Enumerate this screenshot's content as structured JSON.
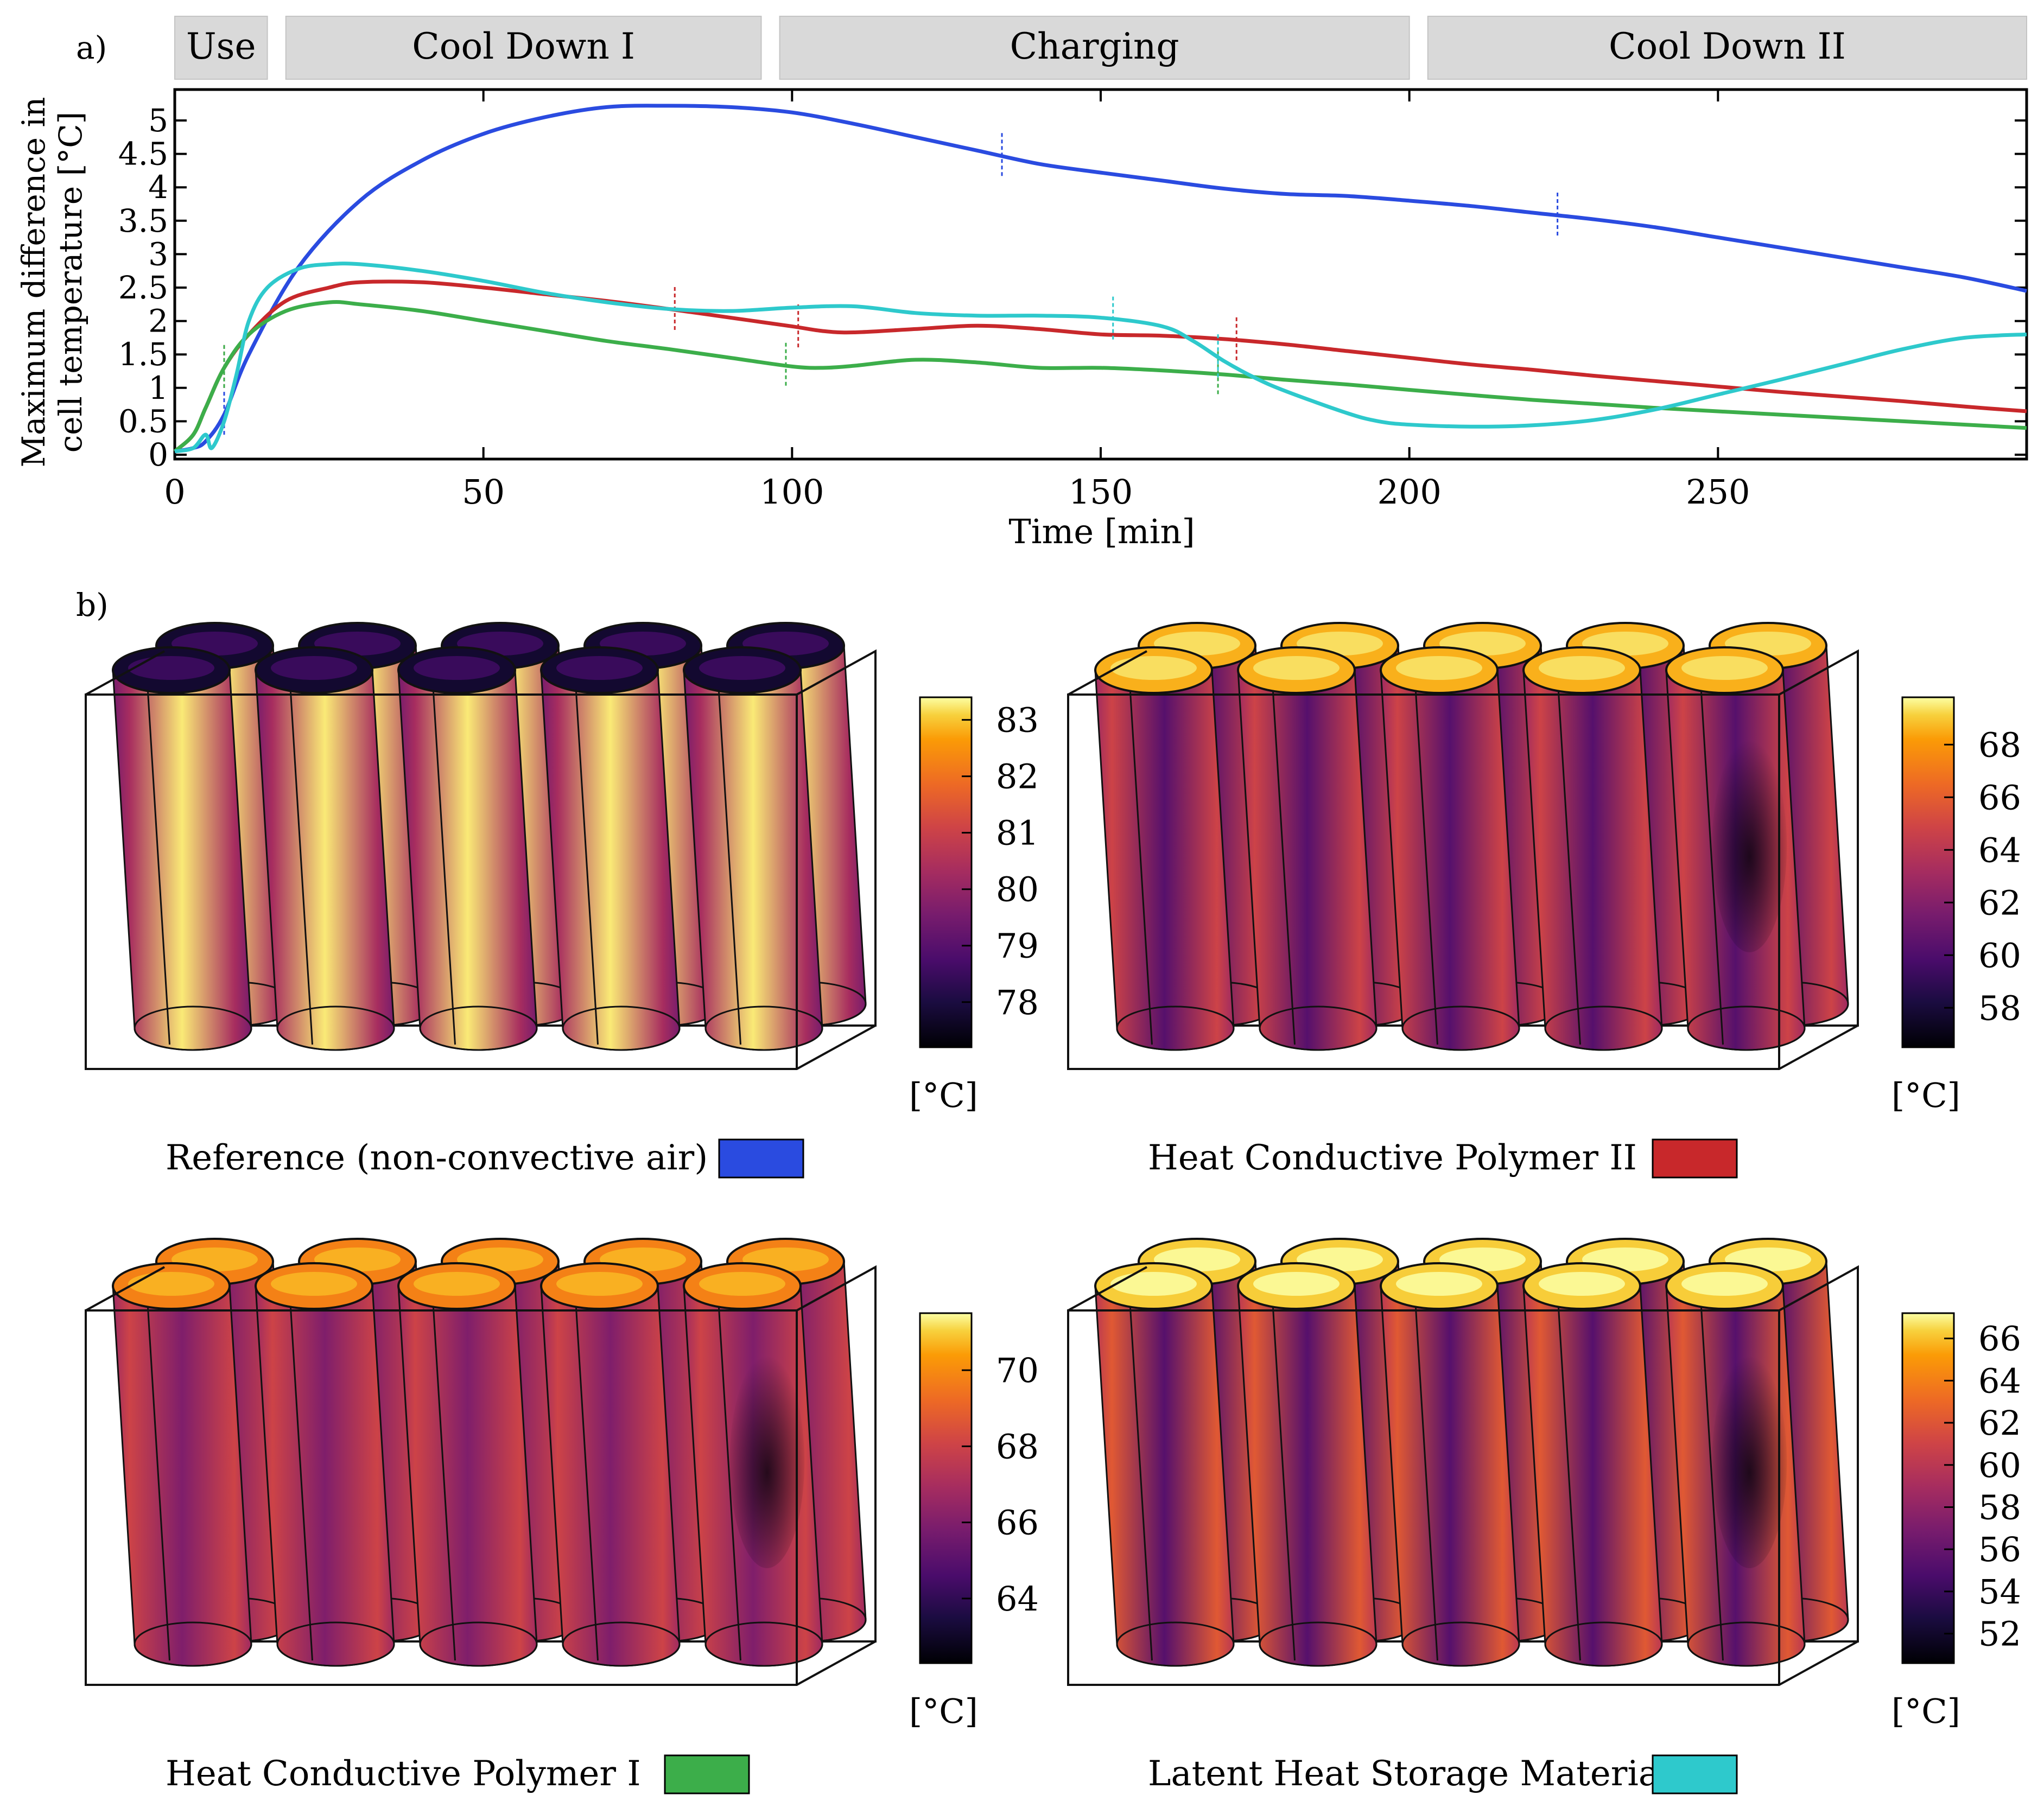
{
  "panel_labels": {
    "a": "a)",
    "b": "b)"
  },
  "chart_data": {
    "type": "line",
    "xlabel": "Time [min]",
    "ylabel_line1": "Maximum difference in",
    "ylabel_line2": "cell temperature [°C]",
    "xlim": [
      0,
      300
    ],
    "ylim": [
      0,
      5.5
    ],
    "xticks": [
      0,
      50,
      100,
      150,
      200,
      250
    ],
    "yticks": [
      0,
      0.5,
      1,
      1.5,
      2,
      2.5,
      3,
      3.5,
      4,
      4.5,
      5
    ],
    "xtick_labels": [
      "0",
      "50",
      "100",
      "150",
      "200",
      "250"
    ],
    "ytick_labels": [
      "0",
      "0.5",
      "1",
      "1.5",
      "2",
      "2.5",
      "3",
      "3.5",
      "4",
      "4.5",
      "5"
    ],
    "phases": [
      {
        "label": "Use",
        "start": 0,
        "end": 15
      },
      {
        "label": "Cool Down I",
        "start": 18,
        "end": 95
      },
      {
        "label": "Charging",
        "start": 98,
        "end": 200
      },
      {
        "label": "Cool Down II",
        "start": 203,
        "end": 300
      }
    ],
    "series": [
      {
        "name": "Reference (non-convective air)",
        "color": "#2a4be0",
        "x": [
          0,
          3,
          5,
          8,
          12,
          20,
          30,
          40,
          50,
          60,
          70,
          80,
          90,
          100,
          110,
          120,
          130,
          140,
          150,
          160,
          170,
          180,
          190,
          200,
          210,
          220,
          230,
          240,
          250,
          260,
          270,
          280,
          290,
          300
        ],
        "y": [
          0.05,
          0.1,
          0.2,
          0.6,
          1.5,
          2.8,
          3.8,
          4.4,
          4.8,
          5.05,
          5.2,
          5.22,
          5.2,
          5.12,
          4.95,
          4.75,
          4.55,
          4.35,
          4.22,
          4.1,
          3.98,
          3.9,
          3.87,
          3.8,
          3.72,
          3.62,
          3.52,
          3.4,
          3.25,
          3.1,
          2.95,
          2.8,
          2.65,
          2.45
        ],
        "markers": [
          8,
          134,
          224
        ]
      },
      {
        "name": "Heat Conductive Polymer II",
        "color": "#c8282b",
        "x": [
          0,
          3,
          5,
          8,
          12,
          18,
          25,
          30,
          40,
          50,
          60,
          70,
          80,
          90,
          100,
          105,
          110,
          120,
          130,
          140,
          150,
          160,
          170,
          180,
          190,
          200,
          210,
          220,
          230,
          240,
          250,
          260,
          270,
          280,
          290,
          300
        ],
        "y": [
          0.05,
          0.3,
          0.7,
          1.3,
          1.8,
          2.3,
          2.5,
          2.58,
          2.58,
          2.5,
          2.4,
          2.3,
          2.18,
          2.05,
          1.92,
          1.85,
          1.83,
          1.88,
          1.93,
          1.88,
          1.8,
          1.78,
          1.73,
          1.65,
          1.55,
          1.45,
          1.35,
          1.27,
          1.18,
          1.1,
          1.02,
          0.94,
          0.87,
          0.8,
          0.72,
          0.65
        ],
        "markers": [
          8,
          81,
          101,
          172
        ]
      },
      {
        "name": "Heat Conductive Polymer I",
        "color": "#3cae4a",
        "x": [
          0,
          3,
          5,
          8,
          12,
          18,
          25,
          30,
          40,
          50,
          60,
          70,
          80,
          90,
          100,
          105,
          110,
          120,
          130,
          140,
          150,
          160,
          170,
          180,
          190,
          200,
          220,
          240,
          260,
          280,
          300
        ],
        "y": [
          0.05,
          0.3,
          0.7,
          1.3,
          1.8,
          2.15,
          2.28,
          2.25,
          2.15,
          2.0,
          1.85,
          1.7,
          1.58,
          1.45,
          1.32,
          1.3,
          1.33,
          1.42,
          1.38,
          1.3,
          1.3,
          1.26,
          1.2,
          1.12,
          1.05,
          0.97,
          0.82,
          0.7,
          0.6,
          0.5,
          0.4
        ],
        "markers": [
          8,
          99,
          169
        ]
      },
      {
        "name": "Latent Heat Storage Material",
        "color": "#2ec9cc",
        "x": [
          0,
          3,
          5,
          6,
          8,
          10,
          12,
          15,
          20,
          25,
          30,
          40,
          50,
          60,
          70,
          80,
          90,
          100,
          110,
          120,
          130,
          140,
          150,
          160,
          165,
          170,
          175,
          180,
          190,
          195,
          200,
          210,
          220,
          230,
          240,
          250,
          260,
          270,
          280,
          290,
          300
        ],
        "y": [
          0.05,
          0.1,
          0.3,
          0.1,
          0.5,
          1.2,
          2.0,
          2.5,
          2.78,
          2.85,
          2.85,
          2.75,
          2.6,
          2.42,
          2.28,
          2.18,
          2.15,
          2.2,
          2.22,
          2.12,
          2.08,
          2.08,
          2.05,
          1.92,
          1.7,
          1.4,
          1.15,
          0.95,
          0.62,
          0.5,
          0.45,
          0.42,
          0.44,
          0.52,
          0.68,
          0.9,
          1.12,
          1.35,
          1.58,
          1.75,
          1.8
        ],
        "markers": [
          152,
          169
        ]
      }
    ]
  },
  "heatmaps": [
    {
      "caption": "Reference (non-convective air)",
      "legend_color": "#2a4be0",
      "unit": "[°C]",
      "ticks": [
        "83",
        "82",
        "81",
        "80",
        "79",
        "78"
      ],
      "tick_values": [
        83,
        82,
        81,
        80,
        79,
        78
      ],
      "cmin": 77.2,
      "cmax": 83.4,
      "cap_shade": 0.08,
      "body_center": 0.95,
      "body_edge": 0.45,
      "shadow_pos": -1
    },
    {
      "caption": "Heat Conductive Polymer II",
      "legend_color": "#c8282b",
      "unit": "[°C]",
      "ticks": [
        "68",
        "66",
        "64",
        "62",
        "60",
        "58"
      ],
      "tick_values": [
        68,
        66,
        64,
        62,
        60,
        58
      ],
      "cmin": 56.5,
      "cmax": 69.8,
      "cap_shade": 0.82,
      "body_center": 0.25,
      "body_edge": 0.55,
      "shadow_pos": 4
    },
    {
      "caption": "Heat Conductive Polymer I",
      "legend_color": "#3cae4a",
      "unit": "[°C]",
      "ticks": [
        "70",
        "68",
        "66",
        "64"
      ],
      "tick_values": [
        70,
        68,
        66,
        64
      ],
      "cmin": 62.3,
      "cmax": 71.5,
      "cap_shade": 0.72,
      "body_center": 0.35,
      "body_edge": 0.55,
      "shadow_pos": 4
    },
    {
      "caption": "Latent Heat Storage Material",
      "legend_color": "#2ec9cc",
      "unit": "[°C]",
      "ticks": [
        "66",
        "64",
        "62",
        "60",
        "58",
        "56",
        "54",
        "52"
      ],
      "tick_values": [
        66,
        64,
        62,
        60,
        58,
        56,
        54,
        52
      ],
      "cmin": 50.6,
      "cmax": 67.2,
      "cap_shade": 0.88,
      "body_center": 0.25,
      "body_edge": 0.62,
      "shadow_pos": 4
    }
  ]
}
